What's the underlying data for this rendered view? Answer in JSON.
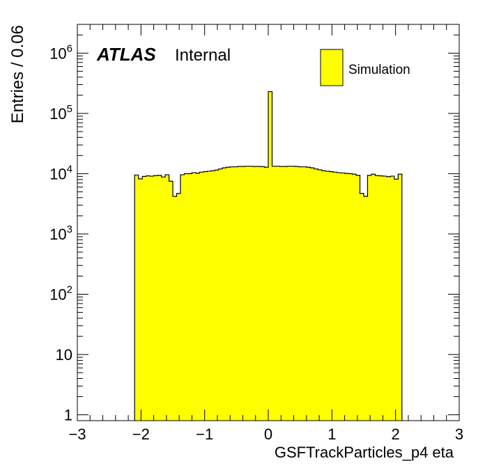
{
  "chart_data": {
    "type": "bar",
    "title": "",
    "xlabel": "GSFTrackParticles_p4 eta",
    "ylabel": "Entries / 0.06",
    "atlas_label": "ATLAS",
    "atlas_sublabel": "Internal",
    "legend": {
      "position": "top-right",
      "entries": [
        {
          "name": "Simulation",
          "color": "#ffff00"
        }
      ]
    },
    "xlim": [
      -3,
      3
    ],
    "ylim": [
      0.8,
      3000000
    ],
    "yscale": "log",
    "bin_width": 0.06,
    "fill_color": "#ffff00",
    "edge_color": "#000000",
    "x_ticks": [
      "−3",
      "−2",
      "−1",
      "0",
      "1",
      "2",
      "3"
    ],
    "x_tick_values": [
      -3,
      -2,
      -1,
      0,
      1,
      2,
      3
    ],
    "y_ticks": [
      {
        "value": 1,
        "base": "1",
        "exp": ""
      },
      {
        "value": 10,
        "base": "10",
        "exp": ""
      },
      {
        "value": 100,
        "base": "10",
        "exp": "2"
      },
      {
        "value": 1000,
        "base": "10",
        "exp": "3"
      },
      {
        "value": 10000,
        "base": "10",
        "exp": "4"
      },
      {
        "value": 100000,
        "base": "10",
        "exp": "5"
      },
      {
        "value": 1000000,
        "base": "10",
        "exp": "6"
      }
    ],
    "bins": [
      {
        "x": -2.1,
        "y": 9500
      },
      {
        "x": -2.04,
        "y": 8200
      },
      {
        "x": -1.98,
        "y": 9000
      },
      {
        "x": -1.92,
        "y": 9200
      },
      {
        "x": -1.86,
        "y": 9100
      },
      {
        "x": -1.8,
        "y": 9300
      },
      {
        "x": -1.74,
        "y": 9400
      },
      {
        "x": -1.68,
        "y": 8800
      },
      {
        "x": -1.62,
        "y": 9600
      },
      {
        "x": -1.56,
        "y": 7500
      },
      {
        "x": -1.5,
        "y": 4200
      },
      {
        "x": -1.44,
        "y": 4700
      },
      {
        "x": -1.38,
        "y": 9600
      },
      {
        "x": -1.32,
        "y": 10000
      },
      {
        "x": -1.26,
        "y": 10000
      },
      {
        "x": -1.2,
        "y": 10400
      },
      {
        "x": -1.14,
        "y": 10200
      },
      {
        "x": -1.08,
        "y": 10600
      },
      {
        "x": -1.02,
        "y": 10800
      },
      {
        "x": -0.96,
        "y": 11000
      },
      {
        "x": -0.9,
        "y": 11200
      },
      {
        "x": -0.84,
        "y": 11500
      },
      {
        "x": -0.78,
        "y": 12000
      },
      {
        "x": -0.72,
        "y": 12500
      },
      {
        "x": -0.66,
        "y": 12800
      },
      {
        "x": -0.6,
        "y": 13000
      },
      {
        "x": -0.54,
        "y": 13000
      },
      {
        "x": -0.48,
        "y": 13200
      },
      {
        "x": -0.42,
        "y": 13200
      },
      {
        "x": -0.36,
        "y": 13300
      },
      {
        "x": -0.3,
        "y": 13300
      },
      {
        "x": -0.24,
        "y": 13200
      },
      {
        "x": -0.18,
        "y": 13200
      },
      {
        "x": -0.12,
        "y": 13100
      },
      {
        "x": -0.06,
        "y": 12800
      },
      {
        "x": 0.0,
        "y": 230000
      },
      {
        "x": 0.06,
        "y": 13300
      },
      {
        "x": 0.12,
        "y": 13300
      },
      {
        "x": 0.18,
        "y": 13200
      },
      {
        "x": 0.24,
        "y": 13200
      },
      {
        "x": 0.3,
        "y": 13300
      },
      {
        "x": 0.36,
        "y": 13300
      },
      {
        "x": 0.42,
        "y": 13200
      },
      {
        "x": 0.48,
        "y": 13000
      },
      {
        "x": 0.54,
        "y": 13000
      },
      {
        "x": 0.6,
        "y": 12800
      },
      {
        "x": 0.66,
        "y": 12500
      },
      {
        "x": 0.72,
        "y": 12000
      },
      {
        "x": 0.78,
        "y": 11600
      },
      {
        "x": 0.84,
        "y": 11200
      },
      {
        "x": 0.9,
        "y": 11000
      },
      {
        "x": 0.96,
        "y": 10800
      },
      {
        "x": 1.02,
        "y": 10600
      },
      {
        "x": 1.08,
        "y": 10400
      },
      {
        "x": 1.14,
        "y": 10300
      },
      {
        "x": 1.2,
        "y": 10100
      },
      {
        "x": 1.26,
        "y": 10000
      },
      {
        "x": 1.32,
        "y": 9800
      },
      {
        "x": 1.38,
        "y": 9400
      },
      {
        "x": 1.44,
        "y": 4700
      },
      {
        "x": 1.5,
        "y": 4200
      },
      {
        "x": 1.56,
        "y": 9400
      },
      {
        "x": 1.62,
        "y": 9800
      },
      {
        "x": 1.68,
        "y": 9300
      },
      {
        "x": 1.74,
        "y": 9200
      },
      {
        "x": 1.8,
        "y": 9100
      },
      {
        "x": 1.86,
        "y": 8900
      },
      {
        "x": 1.92,
        "y": 9100
      },
      {
        "x": 1.98,
        "y": 8100
      },
      {
        "x": 2.04,
        "y": 9800
      },
      {
        "x": 2.1,
        "y": 0
      }
    ]
  }
}
